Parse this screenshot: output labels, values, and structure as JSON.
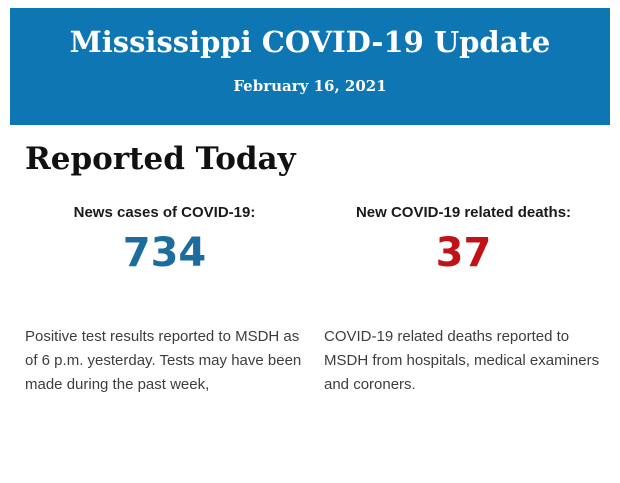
{
  "banner": {
    "title": "Mississippi COVID-19 Update",
    "date": "February 16, 2021",
    "background_color": "#0e76b2",
    "text_color": "#ffffff"
  },
  "page": {
    "heading": "Reported Today",
    "background_color": "#ffffff"
  },
  "stats": {
    "cases": {
      "label": "News cases of COVID-19:",
      "value": "734",
      "value_color": "#1c6d9e",
      "description": "Positive test results reported to MSDH as of 6 p.m. yesterday. Tests may have been made during the past week,"
    },
    "deaths": {
      "label": "New COVID-19 related deaths:",
      "value": "37",
      "value_color": "#c11218",
      "description": "COVID-19 related deaths reported to MSDH from hospitals, medical examiners and coroners."
    }
  }
}
